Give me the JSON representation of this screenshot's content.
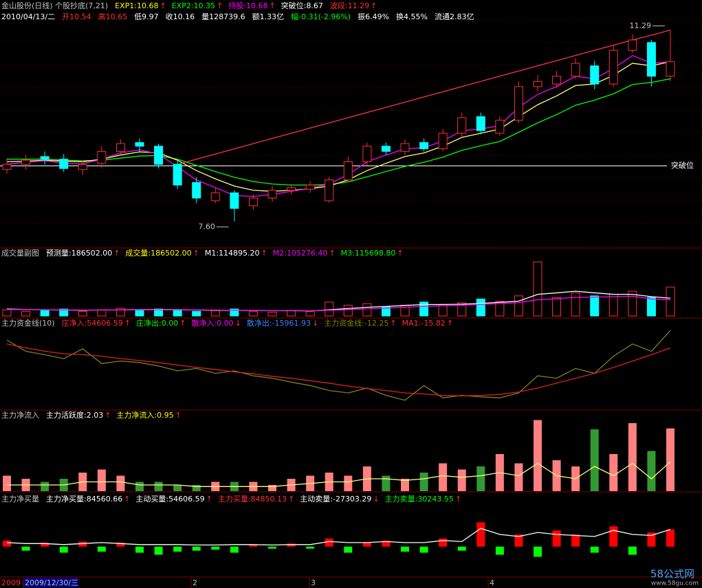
{
  "chart_data": [
    {
      "type": "candlestick",
      "title": "金山股份(日线) 个股抄底(7,21)",
      "legend": [
        {
          "text": "EXP1:10.68",
          "arrow": "↑",
          "color": "#ffff00"
        },
        {
          "text": "EXP2:10.35",
          "arrow": "↑",
          "color": "#00ff00"
        },
        {
          "text": "持股:10.68",
          "arrow": "↑",
          "color": "#ff00ff"
        },
        {
          "text": "突破位:8.67",
          "color": "#ffffff"
        },
        {
          "text": "波段:11.29",
          "arrow": "↑",
          "color": "#ff3030"
        }
      ],
      "date": "2010/04/13/二",
      "quote": [
        {
          "text": "开10.54",
          "color": "#ff3030"
        },
        {
          "text": "高10.65",
          "color": "#ff3030"
        },
        {
          "text": "低9.97",
          "color": "#ffffff"
        },
        {
          "text": "收10.16",
          "color": "#ffffff"
        },
        {
          "text": "量128739.6",
          "color": "#ffffff"
        },
        {
          "text": "额1.33亿",
          "color": "#ffffff"
        },
        {
          "text": "幅-0.31(-2.96%)",
          "color": "#00ff00"
        },
        {
          "text": "振6.49%",
          "color": "#ffffff"
        },
        {
          "text": "换4.55%",
          "color": "#ffffff"
        },
        {
          "text": "流通2.83亿",
          "color": "#ffffff"
        }
      ],
      "open": [
        8.6,
        8.7,
        8.85,
        8.8,
        8.6,
        8.72,
        8.95,
        9.12,
        9.05,
        8.7,
        8.35,
        8.0,
        8.15,
        7.9,
        8.05,
        8.2,
        8.22,
        8.0,
        8.4,
        8.75,
        9.05,
        8.95,
        9.12,
        9.0,
        9.3,
        9.62,
        9.3,
        9.55,
        10.2,
        10.25,
        10.4,
        10.6,
        10.25,
        10.9,
        11.05,
        10.4
      ],
      "high": [
        8.82,
        8.88,
        8.95,
        8.9,
        8.78,
        9.05,
        9.18,
        9.2,
        9.1,
        8.78,
        8.45,
        8.25,
        8.2,
        8.12,
        8.28,
        8.32,
        8.38,
        8.45,
        8.85,
        9.12,
        9.12,
        9.18,
        9.2,
        9.38,
        9.7,
        9.7,
        9.62,
        10.3,
        10.42,
        10.5,
        10.75,
        10.7,
        11.0,
        11.2,
        11.1,
        11.29
      ],
      "low": [
        8.52,
        8.6,
        8.7,
        8.55,
        8.5,
        8.62,
        8.88,
        8.95,
        8.62,
        8.22,
        7.95,
        7.95,
        7.6,
        7.82,
        7.98,
        8.12,
        8.15,
        7.95,
        8.35,
        8.68,
        8.88,
        8.88,
        8.95,
        8.95,
        9.22,
        9.28,
        9.25,
        9.5,
        10.1,
        10.18,
        10.35,
        10.15,
        10.2,
        10.85,
        10.2,
        10.3
      ],
      "close": [
        8.7,
        8.78,
        8.8,
        8.62,
        8.7,
        8.95,
        9.1,
        9.05,
        8.7,
        8.3,
        8.05,
        8.15,
        7.85,
        8.05,
        8.2,
        8.25,
        8.3,
        8.4,
        8.75,
        9.05,
        8.95,
        9.1,
        9.0,
        9.3,
        9.6,
        9.35,
        9.55,
        10.2,
        10.3,
        10.4,
        10.65,
        10.25,
        10.9,
        11.1,
        10.4,
        10.68
      ],
      "series": [
        {
          "color": "#00ff00",
          "values": [
            8.8,
            8.8,
            8.8,
            8.78,
            8.77,
            8.78,
            8.82,
            8.86,
            8.87,
            8.8,
            8.68,
            8.56,
            8.45,
            8.37,
            8.32,
            8.3,
            8.3,
            8.31,
            8.36,
            8.46,
            8.56,
            8.66,
            8.74,
            8.84,
            8.97,
            9.06,
            9.14,
            9.32,
            9.5,
            9.66,
            9.84,
            9.94,
            10.06,
            10.24,
            10.28,
            10.35
          ]
        },
        {
          "color": "#ffff80",
          "values": [
            8.75,
            8.76,
            8.78,
            8.76,
            8.75,
            8.8,
            8.88,
            8.94,
            8.92,
            8.78,
            8.58,
            8.42,
            8.28,
            8.2,
            8.18,
            8.2,
            8.23,
            8.28,
            8.4,
            8.58,
            8.72,
            8.85,
            8.92,
            9.05,
            9.22,
            9.3,
            9.38,
            9.62,
            9.85,
            10.02,
            10.22,
            10.25,
            10.42,
            10.65,
            10.6,
            10.68
          ]
        },
        {
          "color": "#ff00ff",
          "values": [
            8.7,
            8.74,
            8.77,
            8.72,
            8.71,
            8.8,
            8.92,
            8.98,
            8.9,
            8.65,
            8.4,
            8.25,
            8.1,
            8.08,
            8.12,
            8.18,
            8.24,
            8.32,
            8.5,
            8.75,
            8.88,
            9.0,
            9.02,
            9.15,
            9.35,
            9.38,
            9.45,
            9.8,
            10.05,
            10.2,
            10.4,
            10.35,
            10.55,
            10.8,
            10.65,
            10.68
          ]
        },
        {
          "color": "#ff3050",
          "values": [
            null,
            null,
            null,
            null,
            null,
            null,
            null,
            null,
            null,
            8.7,
            8.8,
            8.9,
            9.0,
            9.1,
            9.2,
            9.3,
            9.4,
            9.5,
            9.6,
            9.7,
            9.8,
            9.9,
            10.0,
            10.1,
            10.2,
            10.3,
            10.4,
            10.5,
            10.6,
            10.7,
            10.8,
            10.9,
            11.0,
            11.1,
            11.19,
            11.29
          ]
        }
      ],
      "breakout": {
        "value": 8.67,
        "label": "突破位",
        "color": "#ffffff"
      },
      "annotations": [
        {
          "text": "7.60",
          "value": 7.6
        },
        {
          "text": "11.29",
          "value": 11.29
        }
      ],
      "up_color": "#ff3030",
      "down_color": "#00ffff",
      "ylim": [
        7.1,
        11.87
      ]
    },
    {
      "type": "volume",
      "title": "成交量副图",
      "legend": [
        {
          "text": "预测量:186502.00",
          "arrow": "↑",
          "color": "#ffffff"
        },
        {
          "text": "成交量:186502.00",
          "arrow": "↑",
          "color": "#ffff00"
        },
        {
          "text": "M1:114895.20",
          "arrow": "↑",
          "color": "#ffffff"
        },
        {
          "text": "M2:105276.40",
          "arrow": "↑",
          "color": "#ff00ff"
        },
        {
          "text": "M3:115698.80",
          "arrow": "↑",
          "color": "#00ff00"
        }
      ],
      "values": [
        40000,
        30000,
        35000,
        45000,
        30000,
        40000,
        50000,
        35000,
        45000,
        40000,
        30000,
        35000,
        45000,
        30000,
        25000,
        35000,
        30000,
        90000,
        70000,
        80000,
        60000,
        70000,
        90000,
        75000,
        85000,
        110000,
        95000,
        130000,
        350000,
        120000,
        150000,
        130000,
        140000,
        160000,
        120000,
        186502
      ],
      "series": [
        {
          "color": "#ffffff",
          "values": [
            45000,
            42000,
            40000,
            38000,
            37000,
            38000,
            40000,
            41000,
            42000,
            41000,
            38000,
            37000,
            37000,
            36000,
            35000,
            34000,
            33000,
            40000,
            48000,
            56000,
            62000,
            68000,
            74000,
            74000,
            76000,
            82000,
            88000,
            96000,
            140000,
            150000,
            160000,
            150000,
            140000,
            140000,
            125000,
            114895
          ]
        },
        {
          "color": "#ff00ff",
          "values": [
            42000,
            41000,
            40000,
            39000,
            38000,
            38000,
            39000,
            40000,
            40000,
            40000,
            39000,
            38000,
            37000,
            36000,
            35000,
            35000,
            34000,
            37000,
            41000,
            46000,
            51000,
            56000,
            62000,
            66000,
            70000,
            75000,
            80000,
            86000,
            105000,
            112000,
            120000,
            122000,
            125000,
            128000,
            110000,
            105276
          ]
        }
      ],
      "ylim": [
        0,
        400000
      ]
    },
    {
      "type": "line",
      "title": "主力资金线(10)",
      "legend": [
        {
          "text": "庄净入:54606.59",
          "arrow": "↑",
          "color": "#ff3030"
        },
        {
          "text": "庄净出:0.00",
          "arrow": "↑",
          "color": "#00ff00"
        },
        {
          "text": "散净入:0.00",
          "arrow": "↓",
          "color": "#ff00ff"
        },
        {
          "text": "散净出:-15961.93",
          "arrow": "↓",
          "color": "#4080ff"
        },
        {
          "text": "主力资金线:-12.25",
          "arrow": "↑",
          "color": "#808000"
        },
        {
          "text": "MA1:-15.82",
          "arrow": "↑",
          "color": "#ff3030"
        }
      ],
      "series": [
        {
          "color": "#808020",
          "values": [
            -14.2,
            -16.5,
            -17.2,
            -18.0,
            -16.0,
            -19.0,
            -18.5,
            -18.8,
            -19.5,
            -20.5,
            -20.0,
            -21.0,
            -20.5,
            -21.5,
            -22.0,
            -22.8,
            -23.5,
            -24.5,
            -25.0,
            -24.0,
            -25.5,
            -26.5,
            -23.5,
            -26.0,
            -25.5,
            -25.8,
            -26.0,
            -25.0,
            -21.5,
            -22.0,
            -20.0,
            -21.0,
            -17.5,
            -15.0,
            -16.5,
            -12.25
          ]
        },
        {
          "color": "#e02020",
          "values": [
            -15.0,
            -15.8,
            -16.5,
            -17.0,
            -17.2,
            -17.5,
            -18.0,
            -18.4,
            -18.8,
            -19.3,
            -19.8,
            -20.2,
            -20.7,
            -21.1,
            -21.6,
            -22.0,
            -22.5,
            -23.0,
            -23.6,
            -24.1,
            -24.5,
            -25.0,
            -25.2,
            -25.5,
            -25.6,
            -25.5,
            -25.3,
            -24.8,
            -24.0,
            -23.0,
            -22.0,
            -21.0,
            -19.8,
            -18.5,
            -17.2,
            -15.82
          ]
        }
      ],
      "ylim": [
        -28.5,
        -10.0
      ]
    },
    {
      "type": "activity",
      "title": "主力净流入",
      "legend": [
        {
          "text": "主力活跃度:2.03",
          "arrow": "↑",
          "color": "#ffffff"
        },
        {
          "text": "主力净流入:0.95",
          "arrow": "↑",
          "color": "#ffff00"
        }
      ],
      "values": [
        0.5,
        0.4,
        0.3,
        0.4,
        0.6,
        0.7,
        0.5,
        0.3,
        0.3,
        0.2,
        0.2,
        0.3,
        0.3,
        0.3,
        0.2,
        0.4,
        0.5,
        0.6,
        0.5,
        0.8,
        0.5,
        0.4,
        0.6,
        0.9,
        0.7,
        0.8,
        1.2,
        0.9,
        2.3,
        1.0,
        0.8,
        2.0,
        1.2,
        2.2,
        1.3,
        2.03
      ],
      "up_color": "#ff8080",
      "down_color": "#339933",
      "series": [
        {
          "color": "#ffff80",
          "values": [
            0.2,
            0.2,
            0.2,
            0.2,
            0.3,
            0.3,
            0.3,
            0.2,
            0.2,
            0.2,
            0.15,
            0.15,
            0.15,
            0.15,
            0.15,
            0.2,
            0.25,
            0.3,
            0.3,
            0.4,
            0.4,
            0.35,
            0.4,
            0.5,
            0.45,
            0.5,
            0.6,
            0.5,
            0.9,
            0.5,
            0.4,
            0.8,
            0.5,
            0.9,
            0.4,
            0.95
          ]
        }
      ],
      "ylim": [
        0,
        2.6
      ]
    },
    {
      "type": "netbuy",
      "title": "主力净买量",
      "legend": [
        {
          "text": "主力净买量:84560.66",
          "arrow": "↑",
          "color": "#ffffff"
        },
        {
          "text": "主动买量:54606.59",
          "arrow": "↑",
          "color": "#ffffff"
        },
        {
          "text": "主力买量:84850.13",
          "arrow": "↑",
          "color": "#ff3030"
        },
        {
          "text": "主动卖量:-27303.29",
          "arrow": "↓",
          "color": "#ffffff"
        },
        {
          "text": "主力卖量:30243.55",
          "arrow": "↑",
          "color": "#00ff00"
        }
      ],
      "values": [
        30000,
        -20000,
        20000,
        -30000,
        25000,
        -25000,
        20000,
        -30000,
        -40000,
        -25000,
        -20000,
        -15000,
        -30000,
        10000,
        -10000,
        15000,
        -10000,
        40000,
        -30000,
        20000,
        30000,
        -25000,
        -30000,
        40000,
        -20000,
        120000,
        -40000,
        60000,
        -50000,
        80000,
        60000,
        -30000,
        100000,
        -40000,
        70000,
        84560.66
      ],
      "up_color": "#ff0000",
      "down_color": "#00ff00",
      "series": [
        {
          "color": "#ffffff",
          "values": [
            20000,
            15000,
            15000,
            10000,
            15000,
            20000,
            15000,
            10000,
            10000,
            10000,
            8000,
            8000,
            10000,
            10000,
            8000,
            10000,
            10000,
            25000,
            20000,
            20000,
            25000,
            20000,
            20000,
            30000,
            25000,
            90000,
            60000,
            50000,
            70000,
            60000,
            55000,
            50000,
            80000,
            60000,
            55000,
            84850.13
          ]
        }
      ],
      "xtick_labels": [
        "2009",
        "2009/12/30/三",
        "2",
        "3",
        "4"
      ],
      "ylim": [
        -150000,
        250000
      ]
    }
  ],
  "watermark": {
    "brand": "58公式网",
    "site": "www.58gu.com"
  }
}
